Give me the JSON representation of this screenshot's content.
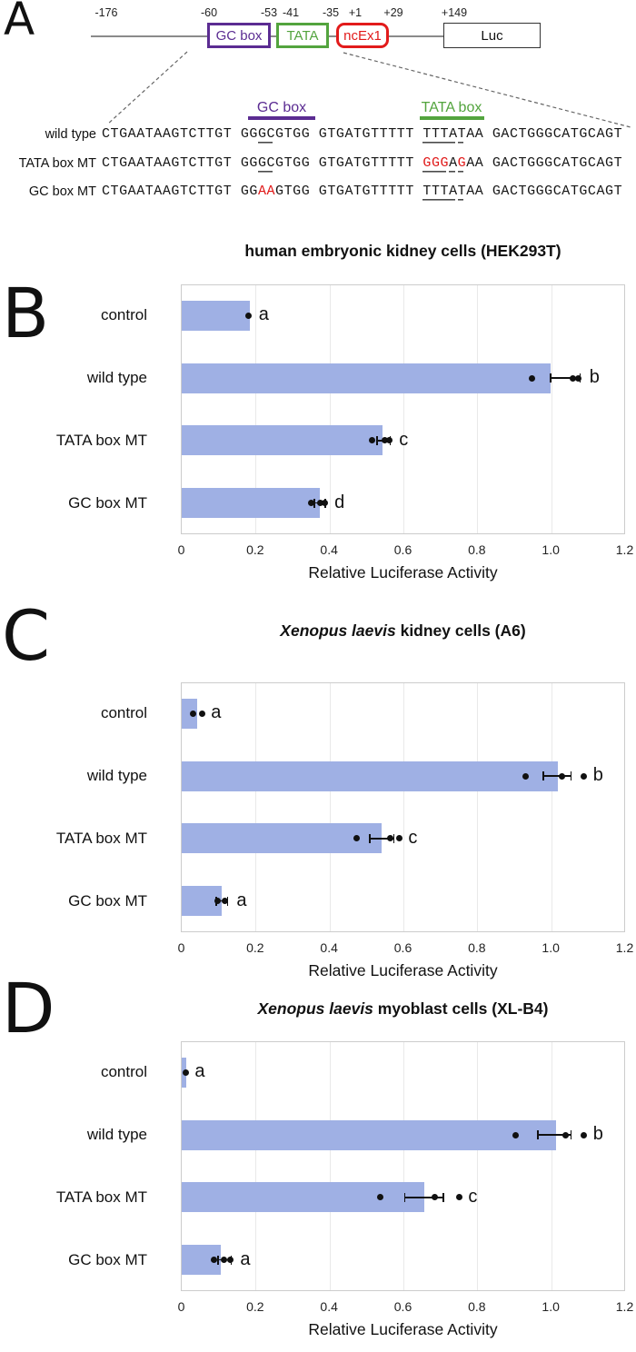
{
  "figure": {
    "panelA": {
      "label": "A",
      "position_labels": [
        "-176",
        "-60",
        "-53",
        "-41",
        "-35",
        "+1",
        "+29",
        "+149"
      ],
      "map_boxes": [
        {
          "label": "GC box",
          "color": "#5b2c92"
        },
        {
          "label": "TATA",
          "color": "#53a43e"
        },
        {
          "label": "ncEx1",
          "color": "#e21b1b"
        },
        {
          "label": "Luc",
          "color": "#333333"
        }
      ],
      "annotations": {
        "gc_label": "GC box",
        "gc_color": "#5b2c92",
        "tata_label": "TATA box",
        "tata_color": "#53a43e"
      },
      "mutation_color": "#e01818",
      "seq_rows": [
        {
          "label": "wild type",
          "segs": [
            {
              "t": "CTGAATAAGTCTTGT GG"
            },
            {
              "t": "GC",
              "u": 1
            },
            {
              "t": "GTGG GTGATGTTTTT "
            },
            {
              "t": "TTTA",
              "u": 1
            },
            {
              "t": "T",
              "u": 1
            },
            {
              "t": "AA GACTGGGCATGCAGT"
            }
          ]
        },
        {
          "label": "TATA box MT",
          "segs": [
            {
              "t": "CTGAATAAGTCTTGT GG"
            },
            {
              "t": "GC",
              "u": 1
            },
            {
              "t": "GTGG GTGATGTTTTT "
            },
            {
              "t": "GGG",
              "u": 1,
              "r": 1
            },
            {
              "t": "A",
              "u": 1
            },
            {
              "t": "G",
              "u": 1,
              "r": 1
            },
            {
              "t": "AA GACTGGGCATGCAGT"
            }
          ]
        },
        {
          "label": "GC box MT",
          "segs": [
            {
              "t": "CTGAATAAGTCTTGT GG"
            },
            {
              "t": "AA",
              "r": 1
            },
            {
              "t": "GTGG GTGATGTTTTT "
            },
            {
              "t": "TTTA",
              "u": 1
            },
            {
              "t": "T",
              "u": 1
            },
            {
              "t": "AA GACTGGGCATGCAGT"
            }
          ]
        }
      ]
    }
  },
  "chart_data": [
    {
      "type": "bar",
      "orientation": "horizontal",
      "panel_label": "B",
      "title_segments": [
        {
          "t": "human embryonic kidney cells (HEK293T)"
        }
      ],
      "categories": [
        "control",
        "wild type",
        "TATA box MT",
        "GC box MT"
      ],
      "values": [
        0.185,
        1.0,
        0.545,
        0.375
      ],
      "points": [
        [
          0.182
        ],
        [
          0.949,
          1.06,
          1.075
        ],
        [
          0.516,
          0.55,
          0.562
        ],
        [
          0.352,
          0.375,
          0.388
        ]
      ],
      "error_range": [
        null,
        [
          1.0,
          1.08
        ],
        [
          0.53,
          0.565
        ],
        [
          0.36,
          0.39
        ]
      ],
      "sig_letters": [
        "a",
        "b",
        "c",
        "d"
      ],
      "xlabel": "Relative Luciferase Activity",
      "xticks": [
        "0",
        "0.2",
        "0.4",
        "0.6",
        "0.8",
        "1.0",
        "1.2"
      ],
      "xlim": [
        0,
        1.2
      ],
      "bar_color": "#9fb0e4",
      "point_color": "#111111",
      "grid": "vertical-only"
    },
    {
      "type": "bar",
      "orientation": "horizontal",
      "panel_label": "C",
      "title_segments": [
        {
          "t": "Xenopus laevis",
          "i": 1
        },
        {
          "t": " kidney cells (A6)"
        }
      ],
      "categories": [
        "control",
        "wild type",
        "TATA box MT",
        "GC box MT"
      ],
      "values": [
        0.042,
        1.02,
        0.542,
        0.108
      ],
      "points": [
        [
          0.032,
          0.056
        ],
        [
          0.933,
          1.03,
          1.09
        ],
        [
          0.474,
          0.565,
          0.59
        ],
        [
          0.098,
          0.118
        ]
      ],
      "error_range": [
        null,
        [
          0.98,
          1.055
        ],
        [
          0.51,
          0.575
        ],
        [
          0.095,
          0.125
        ]
      ],
      "sig_letters": [
        "a",
        "b",
        "c",
        "a"
      ],
      "xlabel": "Relative Luciferase Activity",
      "xticks": [
        "0",
        "0.2",
        "0.4",
        "0.6",
        "0.8",
        "1.0",
        "1.2"
      ],
      "xlim": [
        0,
        1.2
      ],
      "bar_color": "#9fb0e4",
      "point_color": "#111111",
      "grid": "vertical-only"
    },
    {
      "type": "bar",
      "orientation": "horizontal",
      "panel_label": "D",
      "title_segments": [
        {
          "t": "Xenopus laevis",
          "i": 1
        },
        {
          "t": " myoblast cells (XL-B4)"
        }
      ],
      "categories": [
        "control",
        "wild type",
        "TATA box MT",
        "GC box MT"
      ],
      "values": [
        0.012,
        1.015,
        0.658,
        0.107
      ],
      "points": [
        [
          0.012
        ],
        [
          0.904,
          1.04,
          1.09
        ],
        [
          0.538,
          0.685,
          0.752
        ],
        [
          0.088,
          0.115,
          0.132
        ]
      ],
      "error_range": [
        null,
        [
          0.965,
          1.055
        ],
        [
          0.605,
          0.71
        ],
        [
          0.1,
          0.135
        ]
      ],
      "sig_letters": [
        "a",
        "b",
        "c",
        "a"
      ],
      "xlabel": "Relative Luciferase Activity",
      "xticks": [
        "0",
        "0.2",
        "0.4",
        "0.6",
        "0.8",
        "1.0",
        "1.2"
      ],
      "xlim": [
        0,
        1.2
      ],
      "bar_color": "#9fb0e4",
      "point_color": "#111111",
      "grid": "vertical-only"
    }
  ]
}
